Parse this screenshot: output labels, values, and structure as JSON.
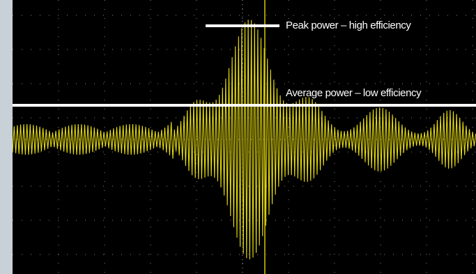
{
  "annotations": {
    "peak": "Peak power – high efficiency",
    "average": "Average power – low efficiency"
  }
}
